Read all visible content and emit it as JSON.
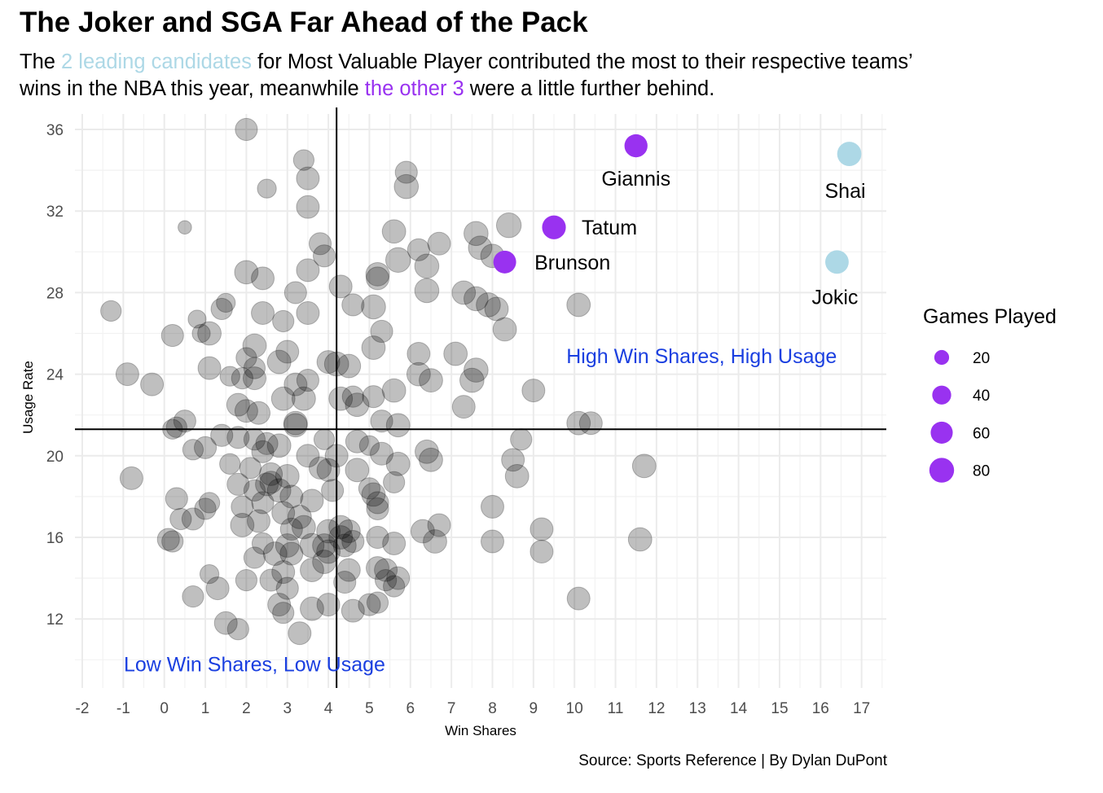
{
  "title": "The Joker and SGA Far Ahead of the Pack",
  "subtitle": {
    "line1_before": "The ",
    "line1_highlight": "2 leading candidates",
    "line1_after": " for Most Valuable Player contributed the most to their respective teams’",
    "line2_before": "wins in the NBA this year, meanwhile ",
    "line2_highlight": "the other 3",
    "line2_after": " were a little further behind."
  },
  "caption": "Source: Sports Reference | By Dylan DuPont",
  "colors": {
    "leading": "#add8e6",
    "other_candidates": "#9932f0",
    "field": "#000000",
    "quadrant_text": "#1a3fe0",
    "grid": "#ebebeb"
  },
  "chart_data": {
    "type": "scatter",
    "xlabel": "Win Shares",
    "ylabel": "Usage Rate",
    "xlim": [
      -2.2,
      17.6
    ],
    "ylim": [
      9.5,
      36.6
    ],
    "x_ticks": [
      -2,
      -1,
      0,
      1,
      2,
      3,
      4,
      5,
      6,
      7,
      8,
      9,
      10,
      11,
      12,
      13,
      14,
      15,
      16,
      17
    ],
    "y_ticks": [
      12,
      16,
      20,
      24,
      28,
      32,
      36
    ],
    "grid": true,
    "reference_lines": {
      "x": 4.2,
      "y": 21.3
    },
    "quadrant_labels": [
      {
        "text": "High Win Shares, High Usage",
        "x": 13.1,
        "y": 24.9
      },
      {
        "text": "Low Win Shares, Low Usage",
        "x": 2.2,
        "y": 9.8
      }
    ],
    "size_legend": {
      "title": "Games Played",
      "values": [
        20,
        40,
        60,
        80
      ],
      "position": "right"
    },
    "highlighted": [
      {
        "name": "Giannis",
        "x": 11.5,
        "y": 35.2,
        "games": 67,
        "group": "other",
        "label_x": 11.5,
        "label_y": 33.6
      },
      {
        "name": "Shai",
        "x": 16.7,
        "y": 34.8,
        "games": 76,
        "group": "leading",
        "label_x": 16.6,
        "label_y": 33.0
      },
      {
        "name": "Tatum",
        "x": 9.5,
        "y": 31.2,
        "games": 72,
        "group": "other",
        "label_x": 10.85,
        "label_y": 31.2
      },
      {
        "name": "Brunson",
        "x": 8.3,
        "y": 29.5,
        "games": 65,
        "group": "other",
        "label_x": 9.95,
        "label_y": 29.5
      },
      {
        "name": "Jokic",
        "x": 16.4,
        "y": 29.5,
        "games": 70,
        "group": "leading",
        "label_x": 16.35,
        "label_y": 27.8
      }
    ],
    "field_points": [
      [
        2.0,
        36.0,
        60
      ],
      [
        3.4,
        34.5,
        50
      ],
      [
        3.5,
        33.6,
        65
      ],
      [
        2.5,
        33.1,
        40
      ],
      [
        5.9,
        33.9,
        60
      ],
      [
        5.9,
        33.2,
        75
      ],
      [
        3.5,
        32.2,
        65
      ],
      [
        0.5,
        31.2,
        15
      ],
      [
        5.6,
        31.0,
        70
      ],
      [
        7.6,
        30.9,
        75
      ],
      [
        8.4,
        31.3,
        80
      ],
      [
        3.8,
        30.4,
        60
      ],
      [
        6.2,
        30.1,
        60
      ],
      [
        6.7,
        30.4,
        65
      ],
      [
        7.7,
        30.2,
        70
      ],
      [
        8.0,
        29.8,
        70
      ],
      [
        3.9,
        29.8,
        60
      ],
      [
        5.7,
        29.6,
        80
      ],
      [
        6.4,
        29.3,
        75
      ],
      [
        2.0,
        29.0,
        70
      ],
      [
        2.4,
        28.7,
        65
      ],
      [
        3.5,
        29.1,
        65
      ],
      [
        5.2,
        28.9,
        70
      ],
      [
        5.2,
        28.7,
        65
      ],
      [
        4.3,
        28.3,
        65
      ],
      [
        3.2,
        28.0,
        60
      ],
      [
        6.4,
        28.1,
        75
      ],
      [
        7.3,
        28.0,
        70
      ],
      [
        7.6,
        27.7,
        75
      ],
      [
        7.9,
        27.4,
        75
      ],
      [
        8.1,
        27.2,
        70
      ],
      [
        10.1,
        27.4,
        70
      ],
      [
        1.5,
        27.5,
        40
      ],
      [
        1.4,
        27.2,
        55
      ],
      [
        2.4,
        27.0,
        65
      ],
      [
        3.5,
        27.0,
        65
      ],
      [
        4.6,
        27.4,
        60
      ],
      [
        5.1,
        27.3,
        75
      ],
      [
        2.9,
        26.6,
        55
      ],
      [
        -1.3,
        27.1,
        50
      ],
      [
        0.8,
        26.7,
        35
      ],
      [
        1.1,
        26.0,
        70
      ],
      [
        0.9,
        26.0,
        35
      ],
      [
        0.2,
        25.9,
        60
      ],
      [
        5.3,
        26.1,
        60
      ],
      [
        8.3,
        26.2,
        70
      ],
      [
        2.2,
        25.4,
        70
      ],
      [
        3.0,
        25.1,
        65
      ],
      [
        5.1,
        25.3,
        70
      ],
      [
        6.2,
        25.0,
        65
      ],
      [
        7.1,
        25.0,
        70
      ],
      [
        2.0,
        24.8,
        50
      ],
      [
        2.2,
        24.3,
        55
      ],
      [
        2.8,
        24.6,
        70
      ],
      [
        1.1,
        24.3,
        65
      ],
      [
        4.0,
        24.6,
        65
      ],
      [
        4.2,
        24.5,
        75
      ],
      [
        4.5,
        24.4,
        70
      ],
      [
        -0.9,
        24.0,
        65
      ],
      [
        1.6,
        23.9,
        45
      ],
      [
        1.9,
        23.8,
        55
      ],
      [
        2.2,
        23.8,
        65
      ],
      [
        3.2,
        23.5,
        65
      ],
      [
        3.5,
        23.7,
        60
      ],
      [
        6.2,
        24.0,
        70
      ],
      [
        6.5,
        23.7,
        70
      ],
      [
        7.5,
        23.7,
        75
      ],
      [
        7.6,
        24.2,
        75
      ],
      [
        -0.3,
        23.5,
        65
      ],
      [
        5.6,
        23.2,
        70
      ],
      [
        9.0,
        23.2,
        65
      ],
      [
        1.8,
        22.5,
        65
      ],
      [
        2.9,
        22.8,
        70
      ],
      [
        3.4,
        22.8,
        70
      ],
      [
        4.3,
        22.8,
        70
      ],
      [
        4.6,
        22.9,
        55
      ],
      [
        5.1,
        22.9,
        60
      ],
      [
        7.3,
        22.4,
        65
      ],
      [
        2.0,
        22.2,
        65
      ],
      [
        2.3,
        22.1,
        65
      ],
      [
        0.5,
        21.7,
        60
      ],
      [
        0.3,
        21.4,
        50
      ],
      [
        0.2,
        21.3,
        45
      ],
      [
        3.2,
        21.6,
        70
      ],
      [
        3.2,
        21.5,
        70
      ],
      [
        4.7,
        22.5,
        70
      ],
      [
        5.3,
        21.7,
        60
      ],
      [
        5.7,
        21.5,
        70
      ],
      [
        10.1,
        21.6,
        70
      ],
      [
        10.4,
        21.6,
        65
      ],
      [
        1.4,
        21.0,
        60
      ],
      [
        1.8,
        20.9,
        60
      ],
      [
        2.2,
        20.8,
        55
      ],
      [
        2.5,
        20.6,
        60
      ],
      [
        2.8,
        20.5,
        70
      ],
      [
        3.9,
        20.8,
        50
      ],
      [
        4.7,
        20.7,
        65
      ],
      [
        5.0,
        20.5,
        45
      ],
      [
        0.7,
        20.3,
        50
      ],
      [
        1.0,
        20.4,
        60
      ],
      [
        2.4,
        20.2,
        60
      ],
      [
        3.5,
        20.0,
        65
      ],
      [
        4.2,
        20.0,
        65
      ],
      [
        5.3,
        20.1,
        65
      ],
      [
        6.4,
        20.2,
        70
      ],
      [
        6.5,
        19.8,
        70
      ],
      [
        8.7,
        20.8,
        55
      ],
      [
        1.6,
        19.6,
        50
      ],
      [
        2.1,
        19.4,
        55
      ],
      [
        2.6,
        19.1,
        65
      ],
      [
        3.0,
        19.0,
        70
      ],
      [
        3.8,
        19.4,
        60
      ],
      [
        4.0,
        19.3,
        65
      ],
      [
        4.7,
        19.3,
        70
      ],
      [
        5.7,
        19.6,
        70
      ],
      [
        8.5,
        19.8,
        65
      ],
      [
        8.6,
        19.0,
        70
      ],
      [
        11.7,
        19.5,
        70
      ],
      [
        -0.8,
        18.9,
        65
      ],
      [
        1.8,
        18.6,
        60
      ],
      [
        2.2,
        18.3,
        55
      ],
      [
        2.5,
        18.6,
        65
      ],
      [
        2.6,
        18.7,
        60
      ],
      [
        2.8,
        18.3,
        70
      ],
      [
        3.1,
        18.0,
        65
      ],
      [
        4.1,
        18.3,
        60
      ],
      [
        5.0,
        18.4,
        55
      ],
      [
        5.1,
        18.1,
        70
      ],
      [
        5.6,
        18.7,
        55
      ],
      [
        0.3,
        17.9,
        60
      ],
      [
        1.1,
        17.7,
        50
      ],
      [
        1.0,
        17.4,
        55
      ],
      [
        1.9,
        17.5,
        60
      ],
      [
        2.4,
        17.7,
        60
      ],
      [
        2.9,
        17.2,
        65
      ],
      [
        3.3,
        17.0,
        70
      ],
      [
        3.6,
        17.8,
        65
      ],
      [
        5.2,
        17.7,
        60
      ],
      [
        5.2,
        17.4,
        60
      ],
      [
        8.0,
        17.5,
        65
      ],
      [
        0.4,
        16.9,
        55
      ],
      [
        0.7,
        16.9,
        60
      ],
      [
        1.9,
        16.6,
        70
      ],
      [
        2.3,
        16.8,
        65
      ],
      [
        3.1,
        16.4,
        60
      ],
      [
        3.4,
        16.5,
        70
      ],
      [
        4.0,
        16.3,
        70
      ],
      [
        4.3,
        16.5,
        70
      ],
      [
        4.3,
        16.0,
        70
      ],
      [
        4.5,
        16.3,
        65
      ],
      [
        4.6,
        15.8,
        60
      ],
      [
        5.2,
        16.0,
        60
      ],
      [
        6.3,
        16.3,
        70
      ],
      [
        6.7,
        16.6,
        65
      ],
      [
        9.2,
        16.4,
        65
      ],
      [
        11.6,
        15.9,
        70
      ],
      [
        0.1,
        15.9,
        60
      ],
      [
        0.2,
        15.8,
        55
      ],
      [
        2.4,
        15.7,
        55
      ],
      [
        3.0,
        15.6,
        70
      ],
      [
        3.6,
        15.6,
        75
      ],
      [
        3.9,
        15.6,
        70
      ],
      [
        4.0,
        15.3,
        70
      ],
      [
        4.4,
        15.6,
        65
      ],
      [
        5.6,
        15.7,
        65
      ],
      [
        6.6,
        15.8,
        70
      ],
      [
        8.0,
        15.8,
        65
      ],
      [
        9.2,
        15.3,
        65
      ],
      [
        2.2,
        15.0,
        55
      ],
      [
        2.7,
        15.2,
        70
      ],
      [
        3.1,
        15.2,
        65
      ],
      [
        3.9,
        14.8,
        70
      ],
      [
        4.5,
        14.4,
        65
      ],
      [
        5.2,
        14.5,
        65
      ],
      [
        5.4,
        14.4,
        65
      ],
      [
        2.9,
        14.3,
        65
      ],
      [
        3.6,
        14.4,
        70
      ],
      [
        1.1,
        14.2,
        40
      ],
      [
        2.0,
        13.9,
        55
      ],
      [
        2.6,
        13.9,
        60
      ],
      [
        4.4,
        13.8,
        60
      ],
      [
        5.4,
        13.9,
        55
      ],
      [
        5.6,
        13.6,
        55
      ],
      [
        5.7,
        14.0,
        65
      ],
      [
        1.3,
        13.5,
        65
      ],
      [
        3.0,
        13.5,
        60
      ],
      [
        0.7,
        13.1,
        55
      ],
      [
        10.1,
        13.0,
        65
      ],
      [
        2.8,
        12.7,
        65
      ],
      [
        2.9,
        12.3,
        55
      ],
      [
        3.6,
        12.5,
        70
      ],
      [
        4.0,
        12.7,
        65
      ],
      [
        4.6,
        12.4,
        65
      ],
      [
        5.0,
        12.7,
        60
      ],
      [
        5.2,
        12.8,
        55
      ],
      [
        1.5,
        11.8,
        65
      ],
      [
        1.8,
        11.5,
        55
      ],
      [
        3.3,
        11.3,
        65
      ]
    ]
  }
}
